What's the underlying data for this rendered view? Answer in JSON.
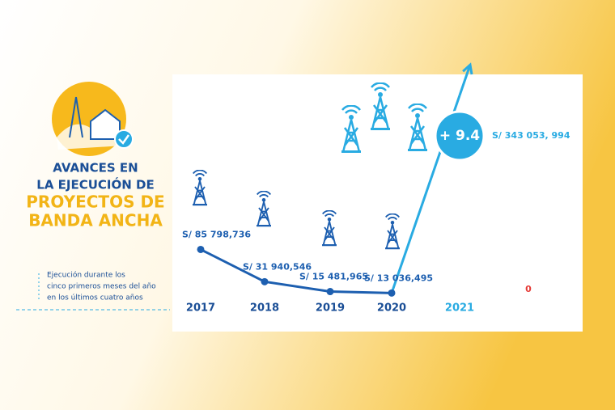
{
  "chart_data": {
    "type": "line",
    "title_lines": [
      "AVANCES EN",
      "LA EJECUCIÓN DE"
    ],
    "title_highlight_lines": [
      "PROYECTOS DE",
      "BANDA ANCHA"
    ],
    "note_lines": [
      "Ejecución durante los",
      "cinco primeros meses del año",
      "en los últimos cuatro años"
    ],
    "categories": [
      "2017",
      "2018",
      "2019",
      "2020",
      "2021"
    ],
    "values": [
      85798736,
      31940546,
      15481965,
      13036495,
      343053994
    ],
    "value_labels": [
      "S/ 85 798,736",
      "S/ 31 940,546",
      "S/ 15 481,965",
      "S/ 13 036,495",
      "S/ 343 053, 994"
    ],
    "color": "#1d5fb0",
    "accent_color": "#29abe2",
    "annotations": [
      "+ 9.4",
      "0"
    ]
  }
}
